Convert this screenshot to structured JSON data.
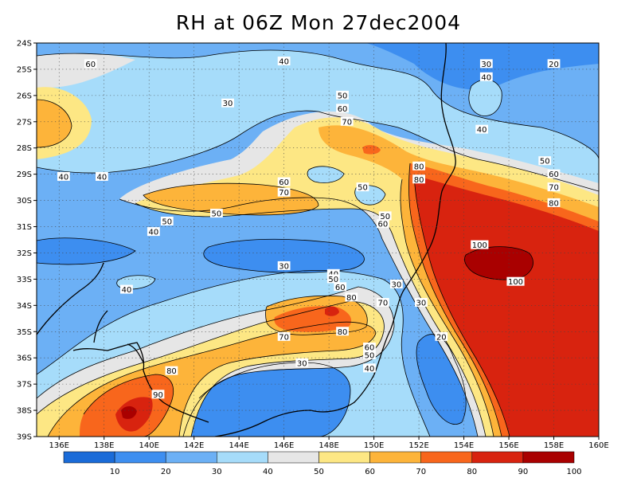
{
  "title": "RH at 06Z Mon 27dec2004",
  "lat_ticks": [
    "24S",
    "25S",
    "26S",
    "27S",
    "28S",
    "29S",
    "30S",
    "31S",
    "32S",
    "33S",
    "34S",
    "35S",
    "36S",
    "37S",
    "38S",
    "39S"
  ],
  "lon_ticks": [
    "136E",
    "138E",
    "140E",
    "142E",
    "144E",
    "146E",
    "148E",
    "150E",
    "152E",
    "154E",
    "156E",
    "158E",
    "160E"
  ],
  "colorbar": {
    "colors": [
      "#1a6bd8",
      "#3d8ef0",
      "#6cb0f5",
      "#a6dcfa",
      "#e6e6e6",
      "#fde784",
      "#fdb43a",
      "#f8661c",
      "#d8230f",
      "#a90000"
    ],
    "labels": [
      "10",
      "20",
      "30",
      "40",
      "50",
      "60",
      "70",
      "80",
      "90",
      "100"
    ]
  },
  "contour_labels": [
    {
      "t": "60",
      "lon": 137.4,
      "lat": -24.8
    },
    {
      "t": "40",
      "lon": 146.0,
      "lat": -24.7
    },
    {
      "t": "30",
      "lon": 155.0,
      "lat": -24.8
    },
    {
      "t": "20",
      "lon": 158.0,
      "lat": -24.8
    },
    {
      "t": "40",
      "lon": 155.0,
      "lat": -25.3
    },
    {
      "t": "30",
      "lon": 143.5,
      "lat": -26.3
    },
    {
      "t": "50",
      "lon": 148.6,
      "lat": -26.0
    },
    {
      "t": "60",
      "lon": 148.6,
      "lat": -26.5
    },
    {
      "t": "70",
      "lon": 148.8,
      "lat": -27.0
    },
    {
      "t": "40",
      "lon": 154.8,
      "lat": -27.3
    },
    {
      "t": "50",
      "lon": 157.6,
      "lat": -28.5
    },
    {
      "t": "60",
      "lon": 158.0,
      "lat": -29.0
    },
    {
      "t": "70",
      "lon": 158.0,
      "lat": -29.5
    },
    {
      "t": "80",
      "lon": 158.0,
      "lat": -30.1
    },
    {
      "t": "80",
      "lon": 152.0,
      "lat": -28.7
    },
    {
      "t": "80",
      "lon": 152.0,
      "lat": -29.2
    },
    {
      "t": "40",
      "lon": 136.2,
      "lat": -29.1
    },
    {
      "t": "40",
      "lon": 137.9,
      "lat": -29.1
    },
    {
      "t": "60",
      "lon": 146.0,
      "lat": -29.3
    },
    {
      "t": "70",
      "lon": 146.0,
      "lat": -29.7
    },
    {
      "t": "50",
      "lon": 149.5,
      "lat": -29.5
    },
    {
      "t": "50",
      "lon": 143.0,
      "lat": -30.5
    },
    {
      "t": "50",
      "lon": 140.8,
      "lat": -30.8
    },
    {
      "t": "50",
      "lon": 150.5,
      "lat": -30.6
    },
    {
      "t": "60",
      "lon": 150.4,
      "lat": -30.9
    },
    {
      "t": "40",
      "lon": 140.2,
      "lat": -31.2
    },
    {
      "t": "100",
      "lon": 154.7,
      "lat": -31.7
    },
    {
      "t": "30",
      "lon": 146.0,
      "lat": -32.5
    },
    {
      "t": "100",
      "lon": 156.3,
      "lat": -33.1
    },
    {
      "t": "40",
      "lon": 148.2,
      "lat": -32.8
    },
    {
      "t": "50",
      "lon": 148.2,
      "lat": -33.0
    },
    {
      "t": "60",
      "lon": 148.5,
      "lat": -33.3
    },
    {
      "t": "30",
      "lon": 151.0,
      "lat": -33.2
    },
    {
      "t": "40",
      "lon": 139.0,
      "lat": -33.4
    },
    {
      "t": "80",
      "lon": 149.0,
      "lat": -33.7
    },
    {
      "t": "70",
      "lon": 150.4,
      "lat": -33.9
    },
    {
      "t": "30",
      "lon": 152.1,
      "lat": -33.9
    },
    {
      "t": "80",
      "lon": 148.6,
      "lat": -35.0
    },
    {
      "t": "70",
      "lon": 146.0,
      "lat": -35.2
    },
    {
      "t": "20",
      "lon": 153.0,
      "lat": -35.2
    },
    {
      "t": "60",
      "lon": 149.8,
      "lat": -35.6
    },
    {
      "t": "50",
      "lon": 149.8,
      "lat": -35.9
    },
    {
      "t": "30",
      "lon": 146.8,
      "lat": -36.2
    },
    {
      "t": "40",
      "lon": 149.8,
      "lat": -36.4
    },
    {
      "t": "80",
      "lon": 141.0,
      "lat": -36.5
    },
    {
      "t": "90",
      "lon": 140.4,
      "lat": -37.4
    }
  ]
}
